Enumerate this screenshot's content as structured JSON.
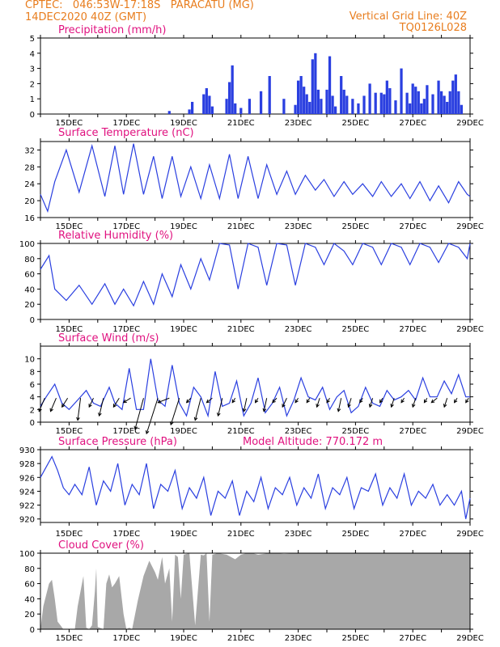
{
  "header": {
    "line1_left": "CPTEC:   046:53W-17:18S   PARACATU (MG)",
    "line2_left": "14DEC2020 40Z (GMT)",
    "line1_right": "Vertical Grid Line: 40Z",
    "line2_right": "TQ0126L028"
  },
  "colors": {
    "header": "#e87d1e",
    "title": "#e0117f",
    "series": "#2a3fe0",
    "bars": "#2a3fe0",
    "cloud": "#a8a8a8",
    "arrows": "#000000"
  },
  "x_axis": {
    "start_day": 14,
    "end_day": 29,
    "labels": [
      "15DEC",
      "17DEC",
      "19DEC",
      "21DEC",
      "23DEC",
      "25DEC",
      "27DEC",
      "29DEC"
    ]
  },
  "chart_data": [
    {
      "id": "precip",
      "type": "bar",
      "title": "Precipitation (mm/h)",
      "ylim": [
        0,
        5
      ],
      "yticks": [
        0,
        1,
        2,
        3,
        4,
        5
      ],
      "x_unit": "day of December 2020",
      "x": [
        18.5,
        19.2,
        19.3,
        19.7,
        19.8,
        19.9,
        20.0,
        20.5,
        20.6,
        20.7,
        20.8,
        21.0,
        21.3,
        21.7,
        22.0,
        22.5,
        22.9,
        23.0,
        23.1,
        23.2,
        23.3,
        23.4,
        23.5,
        23.6,
        23.7,
        23.8,
        24.0,
        24.1,
        24.2,
        24.3,
        24.5,
        24.6,
        24.7,
        24.9,
        25.1,
        25.3,
        25.5,
        25.7,
        25.9,
        26.0,
        26.1,
        26.2,
        26.4,
        26.6,
        26.8,
        26.9,
        27.0,
        27.1,
        27.2,
        27.3,
        27.4,
        27.5,
        27.7,
        27.9,
        28.0,
        28.1,
        28.2,
        28.3,
        28.4,
        28.5,
        28.6,
        28.7
      ],
      "values": [
        0.2,
        0.3,
        0.8,
        1.3,
        1.7,
        1.2,
        0.5,
        1.0,
        2.1,
        3.2,
        0.7,
        0.4,
        1.0,
        1.5,
        2.5,
        1.0,
        0.6,
        2.2,
        2.5,
        1.8,
        1.3,
        0.8,
        3.6,
        4.0,
        1.6,
        1.0,
        1.6,
        3.8,
        1.2,
        0.5,
        2.5,
        1.6,
        1.2,
        1.0,
        0.7,
        1.2,
        2.0,
        1.4,
        1.4,
        1.3,
        2.2,
        1.7,
        0.9,
        3.0,
        1.4,
        0.7,
        2.0,
        1.8,
        1.5,
        0.7,
        1.0,
        1.9,
        1.3,
        2.2,
        1.5,
        1.2,
        0.8,
        1.5,
        2.2,
        2.6,
        1.5,
        0.6
      ]
    },
    {
      "id": "temp",
      "type": "line",
      "title": "Surface Temperature (nC)",
      "ylim": [
        16,
        34
      ],
      "yticks": [
        16,
        20,
        24,
        28,
        32
      ],
      "x_unit": "day of December 2020",
      "x": [
        14.0,
        14.25,
        14.5,
        14.9,
        15.35,
        15.8,
        16.25,
        16.6,
        16.9,
        17.25,
        17.6,
        17.95,
        18.25,
        18.6,
        18.9,
        19.25,
        19.6,
        19.9,
        20.25,
        20.6,
        20.9,
        21.25,
        21.6,
        21.9,
        22.25,
        22.6,
        22.9,
        23.25,
        23.6,
        23.9,
        24.25,
        24.6,
        24.9,
        25.25,
        25.6,
        25.9,
        26.25,
        26.6,
        26.9,
        27.25,
        27.6,
        27.9,
        28.25,
        28.6,
        28.9,
        29.0
      ],
      "values": [
        21.5,
        17.5,
        24.5,
        32.0,
        22.0,
        33.0,
        21.0,
        33.0,
        21.5,
        33.5,
        21.5,
        30.5,
        20.5,
        30.5,
        21.0,
        28.0,
        20.5,
        28.5,
        20.5,
        31.0,
        20.5,
        30.5,
        20.5,
        28.5,
        21.5,
        27.0,
        21.5,
        26.0,
        22.5,
        25.0,
        21.0,
        24.5,
        21.5,
        24.0,
        21.0,
        24.5,
        21.0,
        24.0,
        20.5,
        24.5,
        20.0,
        23.5,
        19.5,
        24.5,
        21.5,
        21.0
      ]
    },
    {
      "id": "rh",
      "type": "line",
      "title": "Relative Humidity (%)",
      "ylim": [
        0,
        100
      ],
      "yticks": [
        0,
        20,
        40,
        60,
        80,
        100
      ],
      "x_unit": "day of December 2020",
      "x": [
        14.0,
        14.3,
        14.5,
        14.9,
        15.35,
        15.8,
        16.25,
        16.6,
        16.9,
        17.25,
        17.6,
        17.95,
        18.25,
        18.6,
        18.9,
        19.25,
        19.6,
        19.9,
        20.25,
        20.6,
        20.9,
        21.25,
        21.6,
        21.9,
        22.25,
        22.6,
        22.9,
        23.25,
        23.6,
        23.9,
        24.25,
        24.6,
        24.9,
        25.25,
        25.6,
        25.9,
        26.25,
        26.6,
        26.9,
        27.25,
        27.6,
        27.9,
        28.25,
        28.6,
        28.9,
        29.0
      ],
      "values": [
        66,
        84,
        40,
        25,
        45,
        20,
        47,
        20,
        40,
        18,
        50,
        20,
        60,
        30,
        72,
        40,
        80,
        52,
        100,
        98,
        40,
        100,
        95,
        45,
        100,
        98,
        45,
        100,
        95,
        72,
        100,
        90,
        72,
        100,
        95,
        72,
        100,
        95,
        72,
        100,
        95,
        75,
        100,
        95,
        80,
        100
      ]
    },
    {
      "id": "wind",
      "type": "line",
      "title": "Surface Wind (m/s)",
      "ylim": [
        0,
        12
      ],
      "yticks": [
        0,
        2,
        4,
        6,
        8,
        10
      ],
      "x_unit": "day of December 2020",
      "x": [
        14.0,
        14.2,
        14.5,
        14.75,
        15.0,
        15.3,
        15.6,
        15.85,
        16.1,
        16.4,
        16.6,
        16.85,
        17.1,
        17.35,
        17.6,
        17.85,
        18.1,
        18.35,
        18.6,
        18.85,
        19.1,
        19.35,
        19.6,
        19.85,
        20.1,
        20.35,
        20.6,
        20.85,
        21.1,
        21.35,
        21.6,
        21.85,
        22.1,
        22.35,
        22.6,
        22.85,
        23.1,
        23.35,
        23.6,
        23.85,
        24.1,
        24.35,
        24.6,
        24.85,
        25.1,
        25.35,
        25.6,
        25.85,
        26.1,
        26.35,
        26.6,
        26.85,
        27.1,
        27.35,
        27.6,
        27.85,
        28.1,
        28.35,
        28.6,
        28.85,
        29.0
      ],
      "values": [
        2.5,
        4.0,
        6.0,
        3.0,
        2.0,
        3.5,
        5.0,
        3.0,
        2.5,
        5.5,
        3.0,
        2.0,
        8.5,
        2.0,
        2.0,
        10.0,
        3.5,
        2.5,
        9.0,
        3.0,
        1.0,
        5.5,
        4.0,
        1.0,
        8.0,
        2.5,
        3.0,
        6.5,
        1.0,
        3.0,
        7.0,
        1.5,
        3.0,
        5.5,
        1.0,
        3.5,
        7.0,
        4.0,
        3.5,
        5.5,
        2.0,
        4.0,
        5.0,
        1.5,
        2.5,
        5.5,
        3.0,
        2.5,
        5.0,
        3.5,
        4.0,
        5.0,
        3.5,
        7.0,
        4.0,
        4.0,
        6.5,
        4.5,
        7.5,
        4.0,
        4.0
      ]
    },
    {
      "id": "pressure",
      "type": "line",
      "title": "Surface Pressure (hPa)",
      "annotation": "Model Altitude: 770.172 m",
      "ylim": [
        919.5,
        930
      ],
      "yticks": [
        920,
        922,
        924,
        926,
        928,
        930
      ],
      "x_unit": "day of December 2020",
      "x": [
        14.0,
        14.2,
        14.4,
        14.6,
        14.8,
        15.0,
        15.2,
        15.45,
        15.7,
        15.95,
        16.2,
        16.45,
        16.7,
        16.95,
        17.2,
        17.45,
        17.7,
        17.95,
        18.2,
        18.45,
        18.7,
        18.95,
        19.2,
        19.45,
        19.7,
        19.95,
        20.2,
        20.45,
        20.7,
        20.95,
        21.2,
        21.45,
        21.7,
        21.95,
        22.2,
        22.45,
        22.7,
        22.95,
        23.2,
        23.45,
        23.7,
        23.95,
        24.2,
        24.45,
        24.7,
        24.95,
        25.2,
        25.45,
        25.7,
        25.95,
        26.2,
        26.45,
        26.7,
        26.95,
        27.2,
        27.45,
        27.7,
        27.95,
        28.2,
        28.45,
        28.7,
        28.85,
        29.0
      ],
      "values": [
        926.0,
        927.5,
        929.0,
        927.0,
        924.5,
        923.5,
        925.0,
        923.5,
        927.5,
        922.0,
        925.5,
        924.0,
        928.0,
        922.0,
        925.0,
        923.5,
        928.0,
        921.5,
        925.0,
        924.0,
        927.0,
        921.5,
        924.5,
        923.0,
        926.0,
        920.5,
        924.0,
        923.0,
        925.5,
        920.5,
        924.0,
        922.5,
        926.0,
        921.5,
        924.5,
        923.5,
        926.0,
        922.0,
        924.5,
        923.0,
        926.5,
        921.5,
        924.5,
        923.5,
        926.0,
        921.5,
        924.5,
        924.0,
        926.5,
        922.0,
        924.5,
        923.0,
        926.5,
        922.0,
        924.0,
        923.0,
        925.0,
        922.0,
        923.5,
        922.0,
        924.0,
        920.0,
        923.0
      ]
    },
    {
      "id": "cloud",
      "type": "area",
      "title": "Cloud Cover (%)",
      "ylim": [
        0,
        100
      ],
      "yticks": [
        0,
        20,
        40,
        60,
        80,
        100
      ],
      "x_unit": "day of December 2020",
      "x": [
        14.0,
        14.1,
        14.3,
        14.4,
        14.5,
        14.6,
        14.7,
        14.8,
        14.9,
        15.0,
        15.2,
        15.3,
        15.45,
        15.5,
        15.6,
        15.7,
        15.8,
        15.9,
        15.95,
        16.0,
        16.2,
        16.3,
        16.4,
        16.5,
        16.6,
        16.75,
        16.9,
        17.0,
        17.1,
        17.2,
        17.4,
        17.6,
        17.8,
        18.0,
        18.1,
        18.25,
        18.35,
        18.5,
        18.6,
        18.7,
        18.8,
        18.9,
        19.0,
        19.2,
        19.4,
        19.6,
        19.7,
        19.8,
        19.9,
        20.0,
        20.2,
        20.5,
        20.8,
        21.0,
        21.2,
        21.4,
        21.6,
        21.8,
        22.0,
        22.2,
        22.5,
        23.0,
        23.5,
        24.0,
        25.0,
        26.0,
        27.0,
        28.0,
        29.0
      ],
      "values": [
        0,
        30,
        60,
        65,
        40,
        10,
        5,
        0,
        0,
        0,
        0,
        30,
        60,
        70,
        2,
        0,
        5,
        50,
        80,
        3,
        0,
        60,
        72,
        55,
        60,
        70,
        20,
        0,
        2,
        0,
        38,
        70,
        90,
        75,
        65,
        95,
        60,
        80,
        10,
        98,
        95,
        40,
        98,
        100,
        5,
        98,
        97,
        100,
        10,
        98,
        100,
        98,
        92,
        98,
        100,
        100,
        98,
        99,
        100,
        100,
        99,
        100,
        100,
        100,
        100,
        100,
        100,
        100,
        100
      ]
    }
  ],
  "wind_arrows": {
    "comment": "arrow tip direction components (east, north) in m/s",
    "x": [
      14.15,
      14.55,
      14.95,
      15.4,
      15.85,
      16.2,
      16.75,
      17.15,
      17.6,
      18.1,
      18.5,
      18.85,
      19.25,
      19.6,
      20.0,
      20.35,
      20.8,
      21.2,
      21.6,
      21.9,
      22.25,
      22.6,
      23.0,
      23.4,
      23.75,
      24.1,
      24.5,
      24.85,
      25.25,
      25.6,
      25.95,
      26.35,
      26.7,
      27.1,
      27.5,
      27.85,
      28.2,
      28.55,
      28.95
    ],
    "u": [
      -2,
      -2,
      -2,
      -1,
      -1.5,
      -1.5,
      -2,
      -2.5,
      -3,
      -4,
      -4,
      -3,
      -1.5,
      -2,
      -2,
      -1.5,
      -1,
      -1,
      -1,
      -1,
      -1.5,
      -1.5,
      -1,
      -1,
      -1,
      -1,
      -1,
      -1,
      -1,
      -1,
      -1,
      -1,
      -1,
      -1,
      -1,
      -2,
      -1,
      -1,
      -1
    ],
    "v": [
      -3,
      -3,
      -2,
      -5,
      -2,
      -4,
      -2,
      -1,
      -7,
      -8,
      -1,
      -6,
      -1,
      -5,
      -1,
      -4,
      -1,
      -3,
      -1,
      -3,
      -1,
      -2,
      -1,
      -1,
      -2,
      -1,
      -3,
      -2,
      -1,
      -2,
      -1,
      -2,
      -1,
      -2,
      -1,
      -1,
      -2,
      -1,
      -1
    ]
  }
}
